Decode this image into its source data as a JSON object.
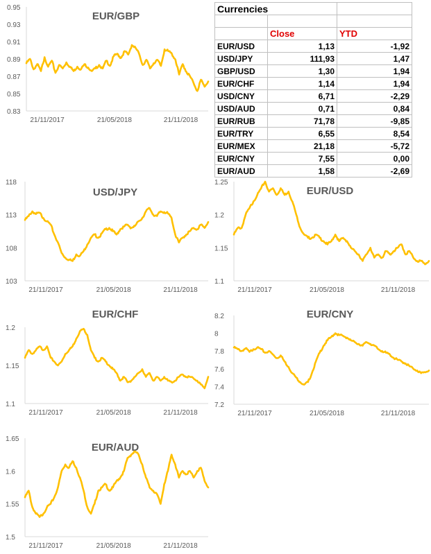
{
  "table": {
    "title": "Currencies",
    "headers": [
      "",
      "Close",
      "YTD"
    ],
    "rows": [
      {
        "name": "EUR/USD",
        "close": "1,13",
        "ytd": "-1,92"
      },
      {
        "name": "USD/JPY",
        "close": "111,93",
        "ytd": "1,47"
      },
      {
        "name": "GBP/USD",
        "close": "1,30",
        "ytd": "1,94"
      },
      {
        "name": "EUR/CHF",
        "close": "1,14",
        "ytd": "1,94"
      },
      {
        "name": "USD/CNY",
        "close": "6,71",
        "ytd": "-2,29"
      },
      {
        "name": "USD/AUD",
        "close": "0,71",
        "ytd": "0,84"
      },
      {
        "name": "EUR/RUB",
        "close": "71,78",
        "ytd": "-9,85"
      },
      {
        "name": "EUR/TRY",
        "close": "6,55",
        "ytd": "8,54"
      },
      {
        "name": "EUR/MEX",
        "close": "21,18",
        "ytd": "-5,72"
      },
      {
        "name": "EUR/CNY",
        "close": "7,55",
        "ytd": "0,00"
      },
      {
        "name": "EUR/AUD",
        "close": "1,58",
        "ytd": "-2,69"
      }
    ]
  },
  "chart_data": [
    {
      "id": "eur-gbp",
      "type": "line",
      "title": "EUR/GBP",
      "ylim": [
        0.83,
        0.95
      ],
      "yticks": [
        "0.83",
        "0.85",
        "0.87",
        "0.89",
        "0.91",
        "0.93",
        "0.95"
      ],
      "xticks": [
        "21/11/2017",
        "21/05/2018",
        "21/11/2018"
      ],
      "xtick_positions": [
        0,
        0.37,
        0.735
      ],
      "series": [
        {
          "color": "#ffc000",
          "x": [
            0,
            0.02,
            0.04,
            0.06,
            0.08,
            0.1,
            0.12,
            0.14,
            0.16,
            0.18,
            0.2,
            0.22,
            0.24,
            0.26,
            0.28,
            0.3,
            0.32,
            0.34,
            0.36,
            0.38,
            0.4,
            0.42,
            0.44,
            0.46,
            0.48,
            0.5,
            0.52,
            0.54,
            0.56,
            0.58,
            0.6,
            0.62,
            0.64,
            0.66,
            0.68,
            0.7,
            0.72,
            0.74,
            0.76,
            0.78,
            0.8,
            0.82,
            0.84,
            0.86,
            0.88,
            0.9,
            0.92,
            0.94,
            0.96,
            0.98,
            1.0
          ],
          "y": [
            0.885,
            0.89,
            0.878,
            0.884,
            0.876,
            0.892,
            0.881,
            0.888,
            0.874,
            0.883,
            0.879,
            0.886,
            0.881,
            0.876,
            0.881,
            0.878,
            0.884,
            0.88,
            0.876,
            0.879,
            0.883,
            0.879,
            0.888,
            0.882,
            0.893,
            0.896,
            0.891,
            0.899,
            0.895,
            0.906,
            0.903,
            0.896,
            0.883,
            0.889,
            0.879,
            0.885,
            0.889,
            0.882,
            0.901,
            0.899,
            0.896,
            0.889,
            0.872,
            0.884,
            0.875,
            0.87,
            0.862,
            0.853,
            0.866,
            0.858,
            0.864
          ]
        }
      ]
    },
    {
      "id": "usd-jpy",
      "type": "line",
      "title": "USD/JPY",
      "ylim": [
        103,
        118
      ],
      "yticks": [
        "103",
        "108",
        "113",
        "118"
      ],
      "xticks": [
        "21/11/2017",
        "21/05/2018",
        "21/11/2018"
      ],
      "xtick_positions": [
        0,
        0.37,
        0.735
      ],
      "series": [
        {
          "color": "#ffc000",
          "x": [
            0,
            0.02,
            0.04,
            0.06,
            0.08,
            0.1,
            0.12,
            0.14,
            0.16,
            0.18,
            0.2,
            0.22,
            0.24,
            0.26,
            0.28,
            0.3,
            0.32,
            0.34,
            0.36,
            0.38,
            0.4,
            0.42,
            0.44,
            0.46,
            0.48,
            0.5,
            0.52,
            0.54,
            0.56,
            0.58,
            0.6,
            0.62,
            0.64,
            0.66,
            0.68,
            0.7,
            0.72,
            0.74,
            0.76,
            0.78,
            0.8,
            0.82,
            0.84,
            0.86,
            0.88,
            0.9,
            0.92,
            0.94,
            0.96,
            0.98,
            1.0
          ],
          "y": [
            112.2,
            112.8,
            113.5,
            113.1,
            113.3,
            112.5,
            112.0,
            111.5,
            110.0,
            108.8,
            107.2,
            106.5,
            106.2,
            106.0,
            107.0,
            106.8,
            107.5,
            108.5,
            109.5,
            110.0,
            109.5,
            110.2,
            110.8,
            111.0,
            110.5,
            110.0,
            110.8,
            111.2,
            111.5,
            111.0,
            111.3,
            112.0,
            112.5,
            113.5,
            114.0,
            113.0,
            112.8,
            113.5,
            113.4,
            113.2,
            112.5,
            110.0,
            108.8,
            109.5,
            110.0,
            110.5,
            111.0,
            110.8,
            111.5,
            111.0,
            111.9
          ]
        }
      ]
    },
    {
      "id": "eur-usd",
      "type": "line",
      "title": "EUR/USD",
      "ylim": [
        1.1,
        1.25
      ],
      "yticks": [
        "1.1",
        "1.15",
        "1.2",
        "1.25"
      ],
      "xticks": [
        "21/11/2017",
        "21/05/2018",
        "21/11/2018"
      ],
      "xtick_positions": [
        0,
        0.37,
        0.735
      ],
      "series": [
        {
          "color": "#ffc000",
          "x": [
            0,
            0.02,
            0.04,
            0.06,
            0.08,
            0.1,
            0.12,
            0.14,
            0.16,
            0.18,
            0.2,
            0.22,
            0.24,
            0.26,
            0.28,
            0.3,
            0.32,
            0.34,
            0.36,
            0.38,
            0.4,
            0.42,
            0.44,
            0.46,
            0.48,
            0.5,
            0.52,
            0.54,
            0.56,
            0.58,
            0.6,
            0.62,
            0.64,
            0.66,
            0.68,
            0.7,
            0.72,
            0.74,
            0.76,
            0.78,
            0.8,
            0.82,
            0.84,
            0.86,
            0.88,
            0.9,
            0.92,
            0.94,
            0.96,
            0.98,
            1.0
          ],
          "y": [
            1.17,
            1.18,
            1.18,
            1.2,
            1.21,
            1.22,
            1.23,
            1.24,
            1.25,
            1.235,
            1.24,
            1.23,
            1.24,
            1.23,
            1.235,
            1.22,
            1.2,
            1.18,
            1.17,
            1.165,
            1.165,
            1.17,
            1.165,
            1.16,
            1.155,
            1.16,
            1.17,
            1.16,
            1.165,
            1.16,
            1.15,
            1.145,
            1.14,
            1.13,
            1.14,
            1.15,
            1.135,
            1.14,
            1.135,
            1.145,
            1.14,
            1.145,
            1.15,
            1.155,
            1.14,
            1.145,
            1.135,
            1.13,
            1.13,
            1.125,
            1.13
          ]
        }
      ]
    },
    {
      "id": "eur-chf",
      "type": "line",
      "title": "EUR/CHF",
      "ylim": [
        1.1,
        1.2
      ],
      "yticks": [
        "1.1",
        "1.15",
        "1.2"
      ],
      "xticks": [
        "21/11/2017",
        "21/05/2018",
        "21/11/2018"
      ],
      "xtick_positions": [
        0,
        0.37,
        0.735
      ],
      "series": [
        {
          "color": "#ffc000",
          "x": [
            0,
            0.02,
            0.04,
            0.06,
            0.08,
            0.1,
            0.12,
            0.14,
            0.16,
            0.18,
            0.2,
            0.22,
            0.24,
            0.26,
            0.28,
            0.3,
            0.32,
            0.34,
            0.36,
            0.38,
            0.4,
            0.42,
            0.44,
            0.46,
            0.48,
            0.5,
            0.52,
            0.54,
            0.56,
            0.58,
            0.6,
            0.62,
            0.64,
            0.66,
            0.68,
            0.7,
            0.72,
            0.74,
            0.76,
            0.78,
            0.8,
            0.82,
            0.84,
            0.86,
            0.88,
            0.9,
            0.92,
            0.94,
            0.96,
            0.98,
            1.0
          ],
          "y": [
            1.16,
            1.17,
            1.165,
            1.17,
            1.175,
            1.17,
            1.175,
            1.16,
            1.155,
            1.15,
            1.155,
            1.165,
            1.17,
            1.175,
            1.185,
            1.195,
            1.198,
            1.19,
            1.17,
            1.16,
            1.155,
            1.16,
            1.155,
            1.15,
            1.145,
            1.14,
            1.13,
            1.135,
            1.128,
            1.13,
            1.135,
            1.14,
            1.145,
            1.135,
            1.14,
            1.13,
            1.135,
            1.13,
            1.135,
            1.13,
            1.128,
            1.13,
            1.135,
            1.138,
            1.135,
            1.135,
            1.133,
            1.13,
            1.125,
            1.12,
            1.135
          ]
        }
      ]
    },
    {
      "id": "eur-cny",
      "type": "line",
      "title": "EUR/CNY",
      "ylim": [
        7.2,
        8.2
      ],
      "yticks": [
        "7.2",
        "7.4",
        "7.6",
        "7.8",
        "8",
        "8.2"
      ],
      "xticks": [
        "21/11/2017",
        "21/05/2018",
        "21/11/2018"
      ],
      "xtick_positions": [
        0,
        0.37,
        0.735
      ],
      "series": [
        {
          "color": "#ffc000",
          "x": [
            0,
            0.02,
            0.04,
            0.06,
            0.08,
            0.1,
            0.12,
            0.14,
            0.16,
            0.18,
            0.2,
            0.22,
            0.24,
            0.26,
            0.28,
            0.3,
            0.32,
            0.34,
            0.36,
            0.38,
            0.4,
            0.42,
            0.44,
            0.46,
            0.48,
            0.5,
            0.52,
            0.54,
            0.56,
            0.58,
            0.6,
            0.62,
            0.64,
            0.66,
            0.68,
            0.7,
            0.72,
            0.74,
            0.76,
            0.78,
            0.8,
            0.82,
            0.84,
            0.86,
            0.88,
            0.9,
            0.92,
            0.94,
            0.96,
            0.98,
            1.0
          ],
          "y": [
            7.84,
            7.82,
            7.8,
            7.83,
            7.79,
            7.82,
            7.84,
            7.82,
            7.78,
            7.8,
            7.76,
            7.72,
            7.75,
            7.68,
            7.62,
            7.55,
            7.5,
            7.45,
            7.42,
            7.45,
            7.55,
            7.68,
            7.78,
            7.86,
            7.92,
            7.96,
            8.0,
            7.98,
            7.97,
            7.95,
            7.92,
            7.9,
            7.88,
            7.86,
            7.9,
            7.88,
            7.86,
            7.82,
            7.8,
            7.78,
            7.76,
            7.72,
            7.7,
            7.68,
            7.66,
            7.63,
            7.6,
            7.58,
            7.55,
            7.56,
            7.58
          ]
        }
      ]
    },
    {
      "id": "eur-aud",
      "type": "line",
      "title": "EUR/AUD",
      "ylim": [
        1.5,
        1.65
      ],
      "yticks": [
        "1.5",
        "1.55",
        "1.6",
        "1.65"
      ],
      "xticks": [
        "21/11/2017",
        "21/05/2018",
        "21/11/2018"
      ],
      "xtick_positions": [
        0,
        0.37,
        0.735
      ],
      "series": [
        {
          "color": "#ffc000",
          "x": [
            0,
            0.02,
            0.04,
            0.06,
            0.08,
            0.1,
            0.12,
            0.14,
            0.16,
            0.18,
            0.2,
            0.22,
            0.24,
            0.26,
            0.28,
            0.3,
            0.32,
            0.34,
            0.36,
            0.38,
            0.4,
            0.42,
            0.44,
            0.46,
            0.48,
            0.5,
            0.52,
            0.54,
            0.56,
            0.58,
            0.6,
            0.62,
            0.64,
            0.66,
            0.68,
            0.7,
            0.72,
            0.74,
            0.76,
            0.78,
            0.8,
            0.82,
            0.84,
            0.86,
            0.88,
            0.9,
            0.92,
            0.94,
            0.96,
            0.98,
            1.0
          ],
          "y": [
            1.56,
            1.57,
            1.545,
            1.535,
            1.53,
            1.535,
            1.545,
            1.55,
            1.56,
            1.575,
            1.6,
            1.61,
            1.605,
            1.615,
            1.605,
            1.59,
            1.57,
            1.545,
            1.535,
            1.55,
            1.57,
            1.575,
            1.58,
            1.57,
            1.575,
            1.585,
            1.59,
            1.6,
            1.62,
            1.625,
            1.63,
            1.625,
            1.61,
            1.59,
            1.575,
            1.57,
            1.565,
            1.55,
            1.58,
            1.6,
            1.625,
            1.61,
            1.59,
            1.6,
            1.595,
            1.6,
            1.59,
            1.6,
            1.605,
            1.585,
            1.575
          ]
        }
      ]
    }
  ]
}
